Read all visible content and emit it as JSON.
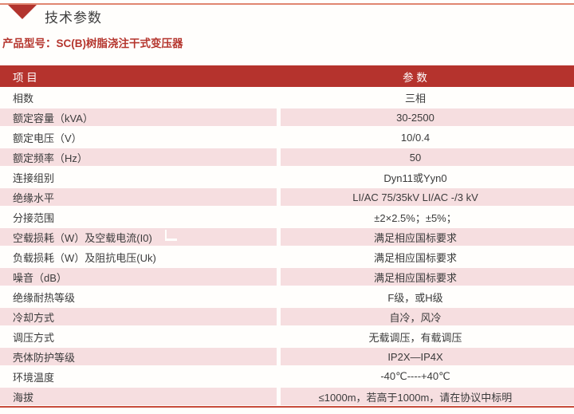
{
  "header": {
    "section_title": "技术参数",
    "product_model": "产品型号：SC(B)树脂浇注干式变压器"
  },
  "icons": {
    "section_marker": "triangle-down-icon"
  },
  "colors": {
    "brand_red": "#b5332d",
    "row_pink": "#f6dee0",
    "top_rule": "#e08670",
    "bottom_rule": "#c74b3b",
    "header_text": "#ffffff",
    "body_text": "#3b3b3b",
    "product_model_text": "#b5362e"
  },
  "table": {
    "headers": {
      "item": "项 目",
      "param": "参 数"
    },
    "rows": [
      {
        "item": "相数",
        "value": "三相"
      },
      {
        "item": "额定容量（kVA）",
        "value": "30-2500"
      },
      {
        "item": "额定电压（V）",
        "value": "10/0.4"
      },
      {
        "item": "额定频率（Hz）",
        "value": "50"
      },
      {
        "item": "连接组别",
        "value": "Dyn11或Yyn0"
      },
      {
        "item": "绝缘水平",
        "value": "LI/AC 75/35kV  LI/AC -/3 kV"
      },
      {
        "item": "分接范围",
        "value": "±2×2.5%；±5%；"
      },
      {
        "item": "空载损耗（W）及空载电流(I0)",
        "value": "满足相应国标要求"
      },
      {
        "item": "负载损耗（W）及阻抗电压(Uk)",
        "value": "满足相应国标要求"
      },
      {
        "item": "噪音（dB）",
        "value": "满足相应国标要求"
      },
      {
        "item": "绝缘耐热等级",
        "value": "F级，或H级"
      },
      {
        "item": "冷却方式",
        "value": "自冷，风冷"
      },
      {
        "item": "调压方式",
        "value": "无载调压，有载调压"
      },
      {
        "item": "壳体防护等级",
        "value": "IP2X—IP4X"
      },
      {
        "item": "环境温度",
        "value": "-40℃----+40℃"
      },
      {
        "item": "海拔",
        "value": "≤1000m，若高于1000m，请在协议中标明"
      }
    ]
  }
}
